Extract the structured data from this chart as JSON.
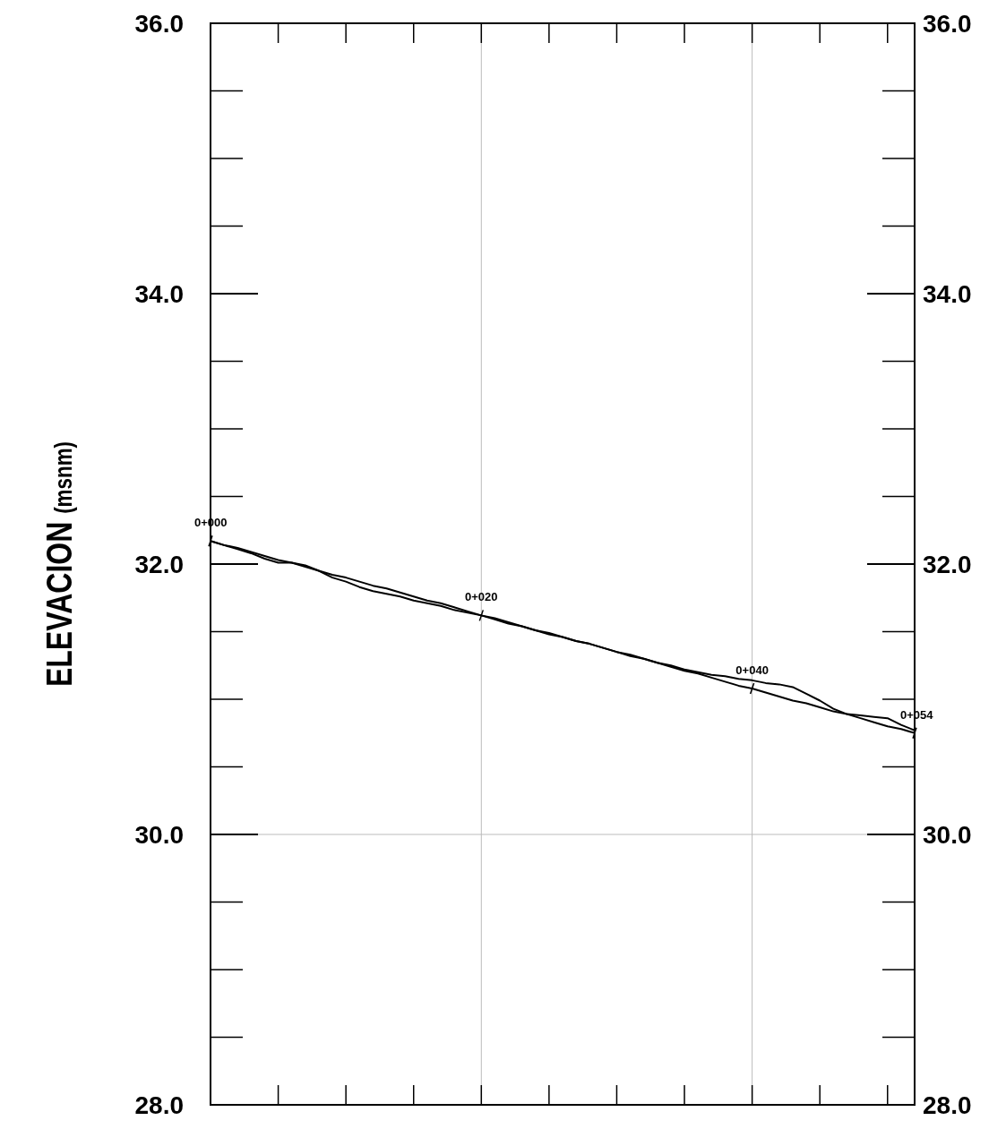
{
  "chart_data": {
    "type": "line",
    "ylabel": "ELEVACION (msnm)",
    "categories": [
      null,
      null,
      null,
      null,
      null,
      null,
      null,
      null,
      null,
      null,
      null,
      null,
      null,
      null,
      null,
      null,
      null,
      null,
      null,
      null,
      null,
      null,
      null,
      null,
      null,
      null,
      null,
      null,
      null,
      null,
      null,
      null,
      null,
      null,
      null,
      null,
      null,
      null,
      null,
      null,
      null,
      null,
      null,
      null,
      null,
      null,
      null,
      null,
      null,
      null,
      null,
      null,
      null
    ],
    "series": [
      {
        "color": "#000000",
        "values": [
          32.17,
          32.14,
          32.11,
          32.08,
          32.04,
          32.01,
          32.01,
          31.99,
          31.95,
          31.9,
          31.87,
          31.83,
          31.8,
          31.78,
          31.76,
          31.73,
          31.71,
          31.69,
          31.66,
          31.64,
          31.62,
          31.59,
          31.56,
          31.54,
          31.51,
          31.48,
          31.46,
          31.43,
          31.41,
          31.38,
          31.35,
          31.33,
          31.3,
          31.27,
          31.25,
          31.22,
          31.2,
          31.18,
          31.17,
          31.15,
          31.14,
          31.12,
          31.11,
          31.09,
          31.04,
          30.99,
          30.93,
          30.89,
          30.88,
          30.87,
          30.86,
          30.81,
          30.77
        ]
      },
      {
        "color": "#000000",
        "values": [
          32.17,
          32.14,
          32.12,
          32.09,
          32.06,
          32.03,
          32.01,
          31.98,
          31.95,
          31.92,
          31.9,
          31.87,
          31.84,
          31.82,
          31.79,
          31.76,
          31.73,
          31.71,
          31.68,
          31.65,
          31.62,
          31.6,
          31.57,
          31.54,
          31.51,
          31.49,
          31.46,
          31.43,
          31.41,
          31.38,
          31.35,
          31.32,
          31.3,
          31.27,
          31.24,
          31.21,
          31.19,
          31.16,
          31.13,
          31.1,
          31.08,
          31.05,
          31.02,
          30.99,
          30.97,
          30.94,
          30.91,
          30.89,
          30.86,
          30.83,
          30.8,
          30.78,
          30.75
        ]
      }
    ],
    "ylim": [
      28,
      36
    ],
    "yticks": [
      {
        "value": 28,
        "label": "28.0"
      },
      {
        "value": 30,
        "label": "30.0"
      },
      {
        "value": 32,
        "label": "32.0"
      },
      {
        "value": 34,
        "label": "34.0"
      },
      {
        "value": 36,
        "label": "36.0"
      }
    ],
    "y2lim": [
      28,
      36
    ],
    "y2ticks": [
      {
        "value": 28,
        "label": "28.0"
      },
      {
        "value": 30,
        "label": "30.0"
      },
      {
        "value": 32,
        "label": "32.0"
      },
      {
        "value": 34,
        "label": "34.0"
      },
      {
        "value": 36,
        "label": "36.0"
      }
    ],
    "ref_lines": [
      {
        "axis": "y",
        "value": 30,
        "color": "#bbbbbb"
      }
    ],
    "annotations": [
      {
        "text": "0+000",
        "y": 32.17
      },
      {
        "text": "0+020",
        "y": 31.62
      },
      {
        "text": "0+040",
        "y": 31.08
      },
      {
        "text": "0+054",
        "y": 30.75
      }
    ],
    "marker": "none",
    "line_style": "solid"
  }
}
